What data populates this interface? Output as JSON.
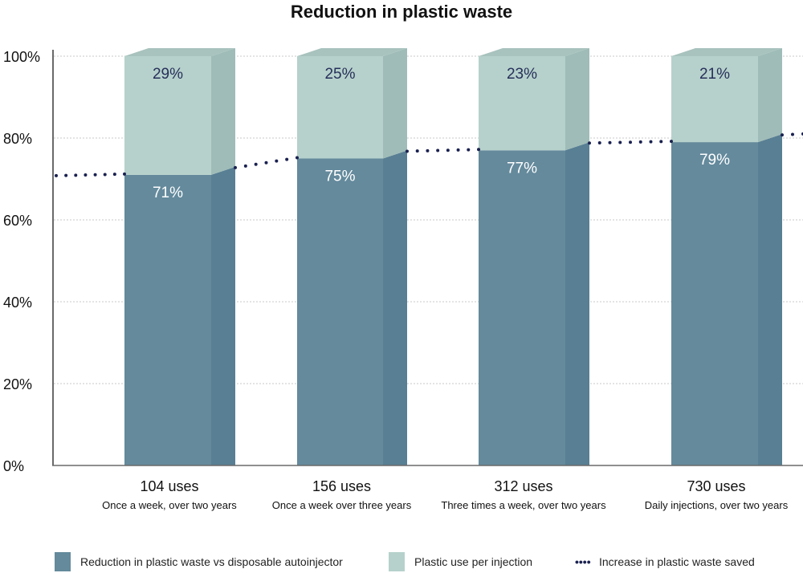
{
  "chart_data": {
    "type": "bar",
    "subtype": "stacked-3d-with-line",
    "title": "Reduction in plastic waste",
    "xlabel": "",
    "ylabel": "",
    "ylim": [
      0,
      100
    ],
    "yticks": [
      0,
      20,
      40,
      60,
      80,
      100
    ],
    "ytick_labels": [
      "0%",
      "20%",
      "40%",
      "60%",
      "80%",
      "100%"
    ],
    "grid": true,
    "categories": [
      {
        "label": "104 uses",
        "sublabel": "Once a week, over two years"
      },
      {
        "label": "156 uses",
        "sublabel": "Once a week over three years"
      },
      {
        "label": "312 uses",
        "sublabel": "Three times a week, over two years"
      },
      {
        "label": "730 uses",
        "sublabel": "Daily injections, over two years"
      }
    ],
    "series": [
      {
        "name": "Reduction in plastic waste vs disposable autoinjector",
        "kind": "bar",
        "color": "#648a9c",
        "side_color": "#587f93",
        "label_color": "#ffffff",
        "values": [
          71,
          75,
          77,
          79
        ],
        "labels": [
          "71%",
          "75%",
          "77%",
          "79%"
        ]
      },
      {
        "name": "Plastic use per injection",
        "kind": "bar",
        "color": "#b6d1cb",
        "side_color": "#9fbcb8",
        "top_color": "#a8c2bd",
        "label_color": "#26305a",
        "values": [
          29,
          25,
          23,
          21
        ],
        "labels": [
          "29%",
          "25%",
          "23%",
          "21%"
        ]
      },
      {
        "name": "Increase in plastic waste saved",
        "kind": "line",
        "style": "dotted",
        "color": "#1a2150",
        "values": [
          71,
          75,
          77,
          79
        ]
      }
    ],
    "legend_position": "bottom"
  },
  "legend": [
    {
      "label": "Reduction in plastic waste vs disposable autoinjector",
      "color": "#648a9c"
    },
    {
      "label": "Plastic use per injection",
      "color": "#b6d1cb"
    },
    {
      "label": "Increase in plastic waste saved",
      "color": "#1a2150"
    }
  ],
  "legend_dots": "••••"
}
